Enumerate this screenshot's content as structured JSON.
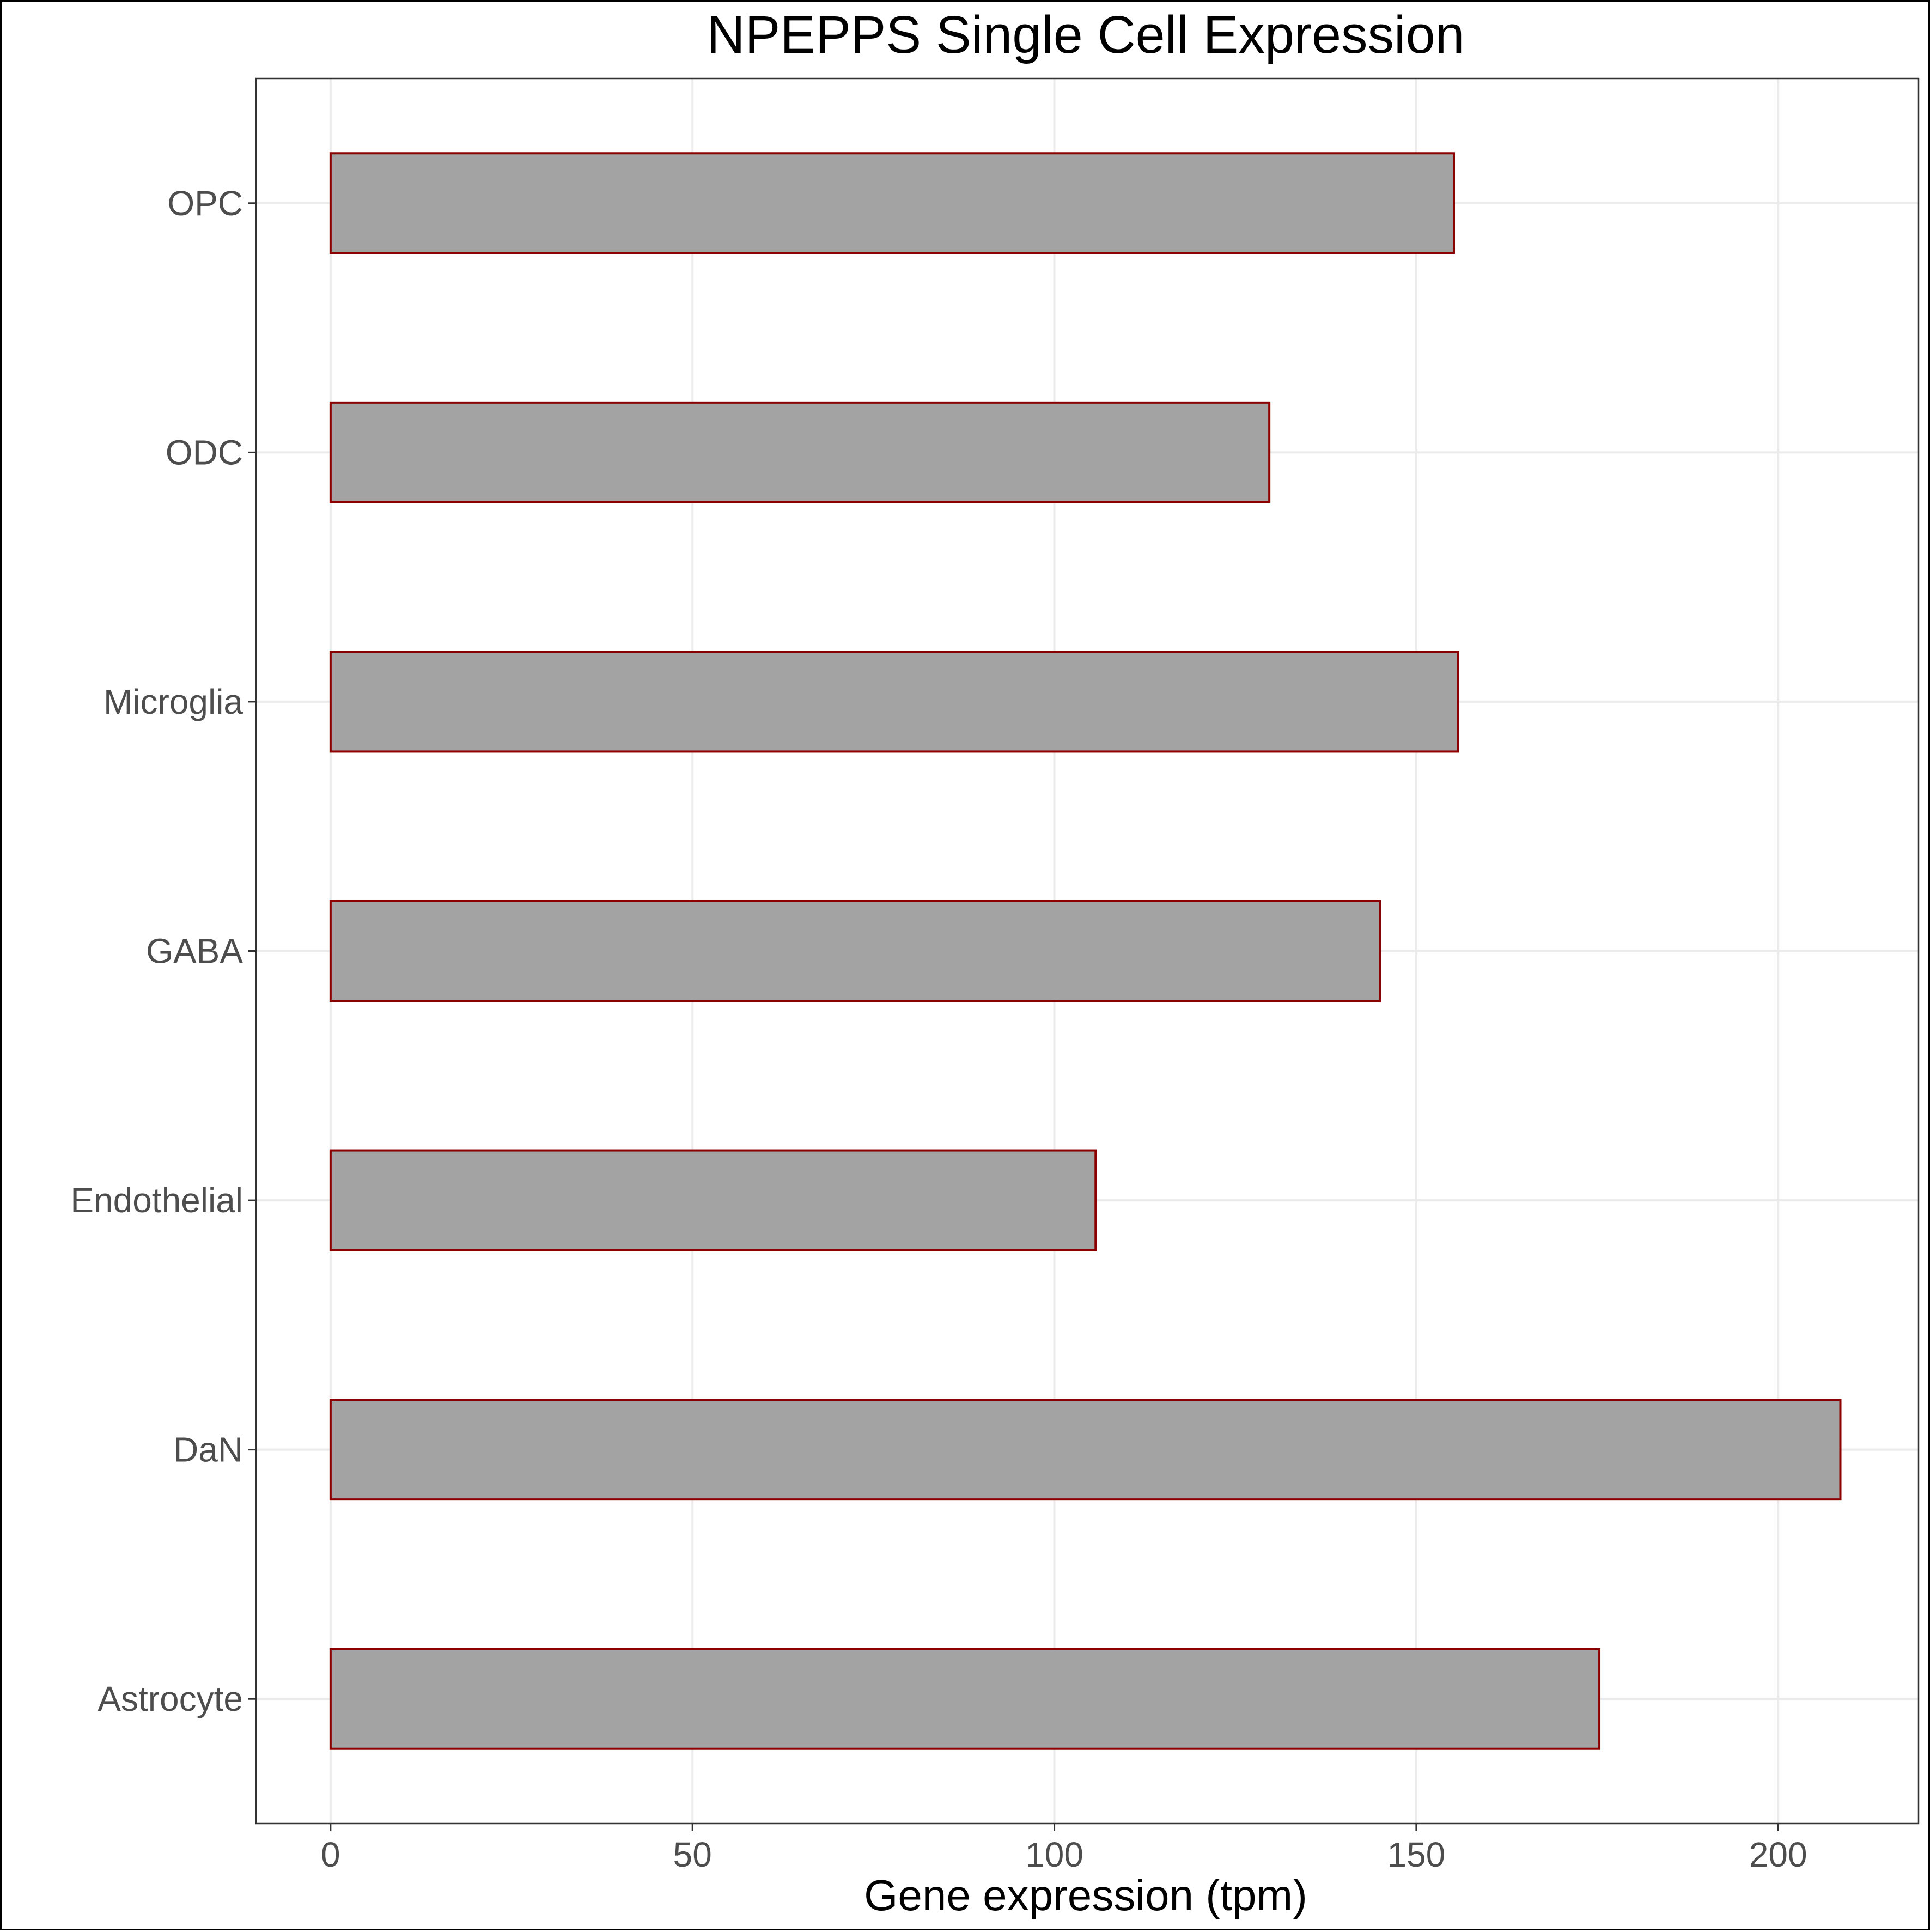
{
  "chart_data": {
    "type": "bar",
    "orientation": "horizontal",
    "title": "NPEPPS Single Cell Expression",
    "xlabel": "Gene expression (tpm)",
    "ylabel": "",
    "categories": [
      "OPC",
      "ODC",
      "Microglia",
      "GABA",
      "Endothelial",
      "DaN",
      "Astrocyte"
    ],
    "values": [
      155.2,
      129.7,
      155.8,
      145.0,
      105.7,
      208.6,
      175.3
    ],
    "xlim": [
      -10.3,
      219.4
    ],
    "xticks": [
      0,
      50,
      100,
      150,
      200
    ],
    "grid": true,
    "legend": "none",
    "colors": {
      "bar_fill": "#a3a3a3",
      "bar_outline": "#8b0000",
      "grid": "#ebebeb",
      "panel_border": "#333333",
      "tick_label": "#4d4d4d",
      "title": "#000000"
    }
  }
}
